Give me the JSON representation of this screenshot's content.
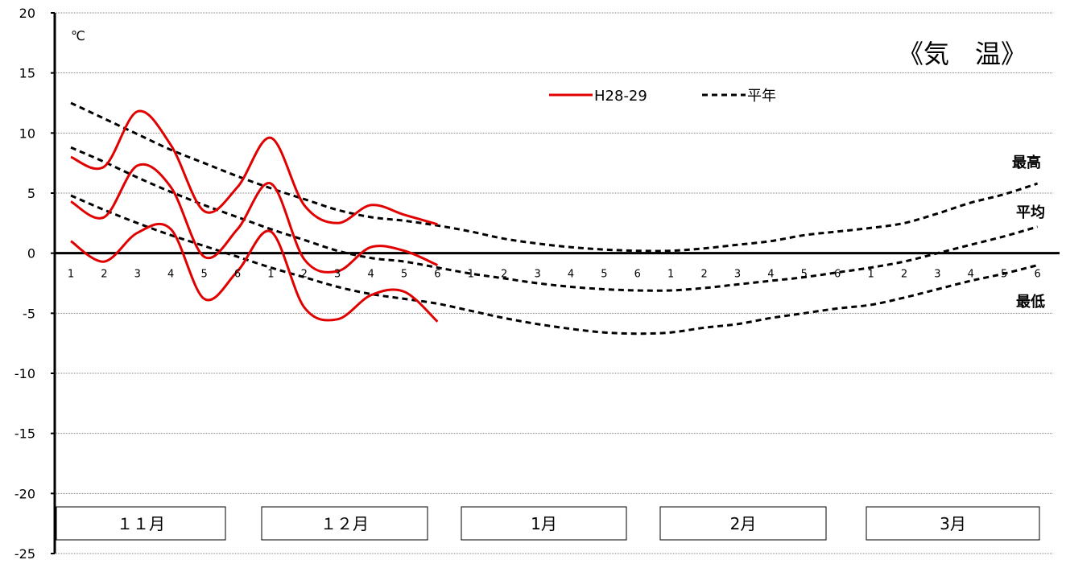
{
  "chart_data": {
    "type": "line",
    "title": "《気　温》",
    "unit": "℃",
    "ylim": [
      -25,
      20
    ],
    "y_ticks": [
      "20",
      "15",
      "10",
      "5",
      "0",
      "-5",
      "-10",
      "-15",
      "-20",
      "-25"
    ],
    "grid": true,
    "months": [
      "１１月",
      "１２月",
      "1月",
      "2月",
      "3月"
    ],
    "x_ticks": [
      "1",
      "2",
      "3",
      "4",
      "5",
      "6",
      "1",
      "2",
      "3",
      "4",
      "5",
      "6",
      "1",
      "2",
      "3",
      "4",
      "5",
      "6",
      "1",
      "2",
      "3",
      "4",
      "5",
      "6",
      "1",
      "2",
      "3",
      "4",
      "5",
      "6"
    ],
    "legend": {
      "position": "top-right",
      "current_label": "H28-29",
      "normal_label": "平年"
    },
    "line_labels": {
      "max": "最高",
      "avg": "平均",
      "min": "最低"
    },
    "colors": {
      "current": "#e00000",
      "normal": "#000000"
    },
    "series": [
      {
        "name": "H28-29",
        "kind": "current",
        "group": "max",
        "values": [
          8.0,
          7.2,
          11.8,
          9.0,
          3.5,
          5.5,
          9.6,
          4.0,
          2.5,
          4.0,
          3.2,
          2.4
        ]
      },
      {
        "name": "H28-29",
        "kind": "current",
        "group": "avg",
        "values": [
          4.3,
          3.0,
          7.3,
          5.5,
          -0.3,
          2.0,
          5.8,
          -0.5,
          -1.5,
          0.5,
          0.2,
          -1.0
        ]
      },
      {
        "name": "H28-29",
        "kind": "current",
        "group": "min",
        "values": [
          1.0,
          -0.7,
          1.7,
          2.0,
          -3.8,
          -1.5,
          1.8,
          -4.5,
          -5.5,
          -3.5,
          -3.2,
          -5.7
        ]
      },
      {
        "name": "平年",
        "kind": "normal",
        "group": "max",
        "values": [
          12.5,
          11.2,
          9.9,
          8.6,
          7.5,
          6.4,
          5.4,
          4.5,
          3.6,
          3.0,
          2.7,
          2.3,
          1.8,
          1.2,
          0.8,
          0.5,
          0.3,
          0.2,
          0.2,
          0.4,
          0.7,
          1.0,
          1.5,
          1.8,
          2.1,
          2.5,
          3.3,
          4.2,
          4.9,
          5.8
        ]
      },
      {
        "name": "平年",
        "kind": "normal",
        "group": "avg",
        "values": [
          8.8,
          7.6,
          6.3,
          5.1,
          4.0,
          3.0,
          2.0,
          1.1,
          0.2,
          -0.4,
          -0.7,
          -1.2,
          -1.7,
          -2.1,
          -2.5,
          -2.8,
          -3.0,
          -3.1,
          -3.1,
          -2.9,
          -2.6,
          -2.3,
          -2.0,
          -1.6,
          -1.2,
          -0.7,
          0.0,
          0.7,
          1.4,
          2.2
        ]
      },
      {
        "name": "平年",
        "kind": "normal",
        "group": "min",
        "values": [
          4.8,
          3.6,
          2.5,
          1.5,
          0.6,
          -0.3,
          -1.2,
          -2.0,
          -2.8,
          -3.4,
          -3.8,
          -4.2,
          -4.8,
          -5.4,
          -5.9,
          -6.3,
          -6.6,
          -6.7,
          -6.6,
          -6.2,
          -5.9,
          -5.4,
          -5.0,
          -4.6,
          -4.3,
          -3.7,
          -3.0,
          -2.3,
          -1.7,
          -1.0
        ]
      }
    ]
  }
}
